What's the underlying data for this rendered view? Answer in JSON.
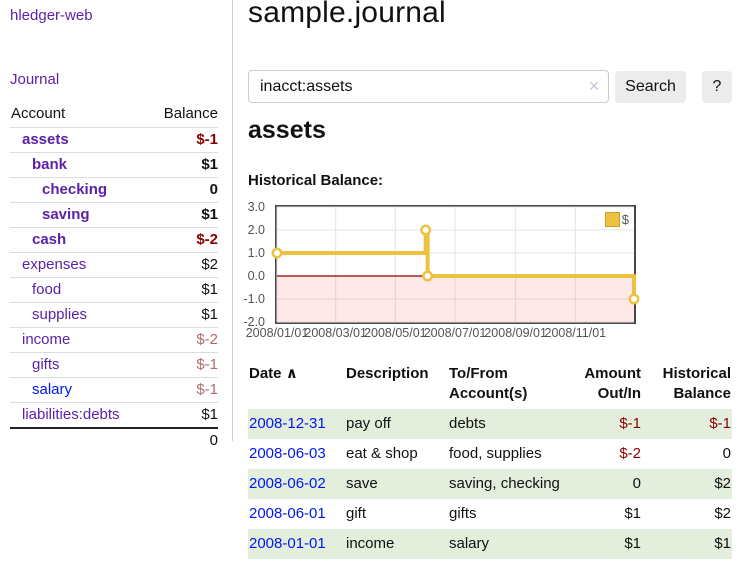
{
  "brand": "hledger-web",
  "sidebar": {
    "nav_journal": "Journal",
    "table": {
      "col_account": "Account",
      "col_balance": "Balance",
      "rows": [
        {
          "name": "assets",
          "balance": "$-1"
        },
        {
          "name": "bank",
          "balance": "$1"
        },
        {
          "name": "checking",
          "balance": "0"
        },
        {
          "name": "saving",
          "balance": "$1"
        },
        {
          "name": "cash",
          "balance": "$-2"
        },
        {
          "name": "expenses",
          "balance": "$2"
        },
        {
          "name": "food",
          "balance": "$1"
        },
        {
          "name": "supplies",
          "balance": "$1"
        },
        {
          "name": "income",
          "balance": "$-2"
        },
        {
          "name": "gifts",
          "balance": "$-1"
        },
        {
          "name": "salary",
          "balance": "$-1"
        },
        {
          "name": "liabilities:debts",
          "balance": "$1"
        }
      ],
      "total": "0"
    }
  },
  "main": {
    "title": "sample.journal",
    "search": {
      "value": "inacct:assets",
      "clear_icon": "✕",
      "search_label": "Search",
      "help_label": "?"
    },
    "heading": "assets",
    "chart_title": "Historical Balance:"
  },
  "chart_data": {
    "type": "line",
    "title": "Historical Balance",
    "step": true,
    "series": [
      {
        "name": "$",
        "color": "#edc240",
        "points": [
          [
            "2008-01-01",
            1.0
          ],
          [
            "2008-06-01",
            2.0
          ],
          [
            "2008-06-03",
            0.0
          ],
          [
            "2008-12-31",
            -1.0
          ]
        ]
      }
    ],
    "xlim": [
      "2008-01-01",
      "2008-12-31"
    ],
    "ylim": [
      -2.0,
      3.0
    ],
    "y_ticks": [
      3.0,
      2.0,
      1.0,
      0.0,
      -1.0,
      -2.0
    ],
    "x_ticks": [
      "2008/01/01",
      "2008/03/01",
      "2008/05/01",
      "2008/07/01",
      "2008/09/01",
      "2008/11/01"
    ],
    "grid": true,
    "legend_position": "top-right",
    "zero_line_color": "#8b0000",
    "negative_region_color": "rgba(255,0,0,0.09)"
  },
  "register": {
    "headers": {
      "date": "Date",
      "sort_icon": "∧",
      "description": "Description",
      "account": "To/From Account(s)",
      "amount": "Amount Out/In",
      "balance": "Historical Balance"
    },
    "rows": [
      {
        "date": "2008-12-31",
        "description": "pay off",
        "accounts": "debts",
        "amount": "$-1",
        "balance": "$-1"
      },
      {
        "date": "2008-06-03",
        "description": "eat & shop",
        "accounts": "food, supplies",
        "amount": "$-2",
        "balance": "0"
      },
      {
        "date": "2008-06-02",
        "description": "save",
        "accounts": "saving, checking",
        "amount": "0",
        "balance": "$2"
      },
      {
        "date": "2008-06-01",
        "description": "gift",
        "accounts": "gifts",
        "amount": "$1",
        "balance": "$2"
      },
      {
        "date": "2008-01-01",
        "description": "income",
        "accounts": "salary",
        "amount": "$1",
        "balance": "$1"
      }
    ]
  }
}
